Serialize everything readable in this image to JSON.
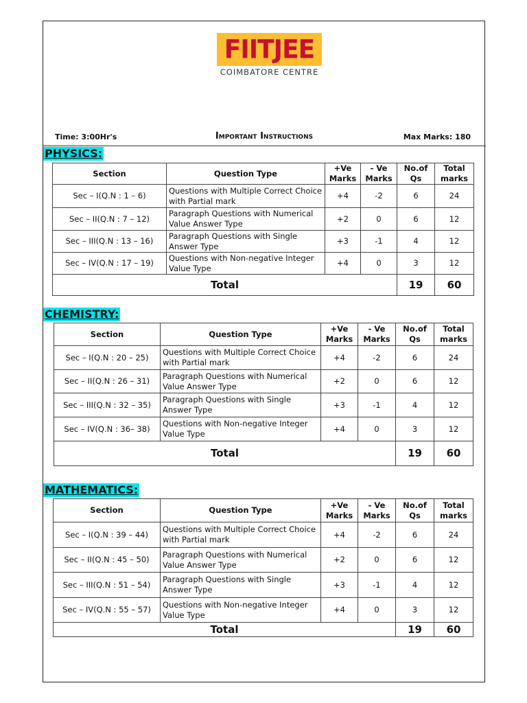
{
  "header": {
    "logo_text": "FIITJEE",
    "centre": "COIMBATORE CENTRE",
    "time": "Time: 3:00Hr's",
    "title": "Important Instructions",
    "max_marks": "Max Marks: 180"
  },
  "columns": [
    "Section",
    "Question Type",
    "+Ve Marks",
    "- Ve Marks",
    "No.of Qs",
    "Total marks"
  ],
  "total_label": "Total",
  "subjects": [
    {
      "name": "PHYSICS:",
      "rows": [
        [
          "Sec – I(Q.N : 1 – 6)",
          "Questions with Multiple Correct Choice with Partial mark",
          "+4",
          "-2",
          "6",
          "24"
        ],
        [
          "Sec – II(Q.N : 7 – 12)",
          "Paragraph Questions with Numerical Value Answer Type",
          "+2",
          "0",
          "6",
          "12"
        ],
        [
          "Sec – III(Q.N : 13 – 16)",
          "Paragraph Questions with Single Answer Type",
          "+3",
          "-1",
          "4",
          "12"
        ],
        [
          "Sec – IV(Q.N : 17 – 19)",
          "Questions with Non-negative Integer Value Type",
          "+4",
          "0",
          "3",
          "12"
        ]
      ],
      "total_qs": "19",
      "total_marks": "60"
    },
    {
      "name": "CHEMISTRY:",
      "rows": [
        [
          "Sec – I(Q.N : 20 – 25)",
          "Questions with Multiple Correct Choice with Partial mark",
          "+4",
          "-2",
          "6",
          "24"
        ],
        [
          "Sec – II(Q.N : 26 – 31)",
          "Paragraph Questions with Numerical Value Answer Type",
          "+2",
          "0",
          "6",
          "12"
        ],
        [
          "Sec – III(Q.N : 32 – 35)",
          "Paragraph Questions with Single Answer Type",
          "+3",
          "-1",
          "4",
          "12"
        ],
        [
          "Sec – IV(Q.N : 36– 38)",
          "Questions with Non-negative Integer Value Type",
          "+4",
          "0",
          "3",
          "12"
        ]
      ],
      "total_qs": "19",
      "total_marks": "60"
    },
    {
      "name": "MATHEMATICS:",
      "rows": [
        [
          "Sec – I(Q.N : 39 – 44)",
          "Questions with Multiple Correct Choice with Partial mark",
          "+4",
          "-2",
          "6",
          "24"
        ],
        [
          "Sec – II(Q.N : 45 – 50)",
          "Paragraph Questions with Numerical Value Answer Type",
          "+2",
          "0",
          "6",
          "12"
        ],
        [
          "Sec – III(Q.N : 51 – 54)",
          "Paragraph Questions with Single Answer Type",
          "+3",
          "-1",
          "4",
          "12"
        ],
        [
          "Sec – IV(Q.N : 55 – 57)",
          "Questions with Non-negative Integer Value Type",
          "+4",
          "0",
          "3",
          "12"
        ]
      ],
      "total_qs": "19",
      "total_marks": "60"
    }
  ],
  "colors": {
    "logo_bg": "#fbbd32",
    "logo_text": "#c5112e",
    "subject_highlight": "#00e5ee"
  }
}
